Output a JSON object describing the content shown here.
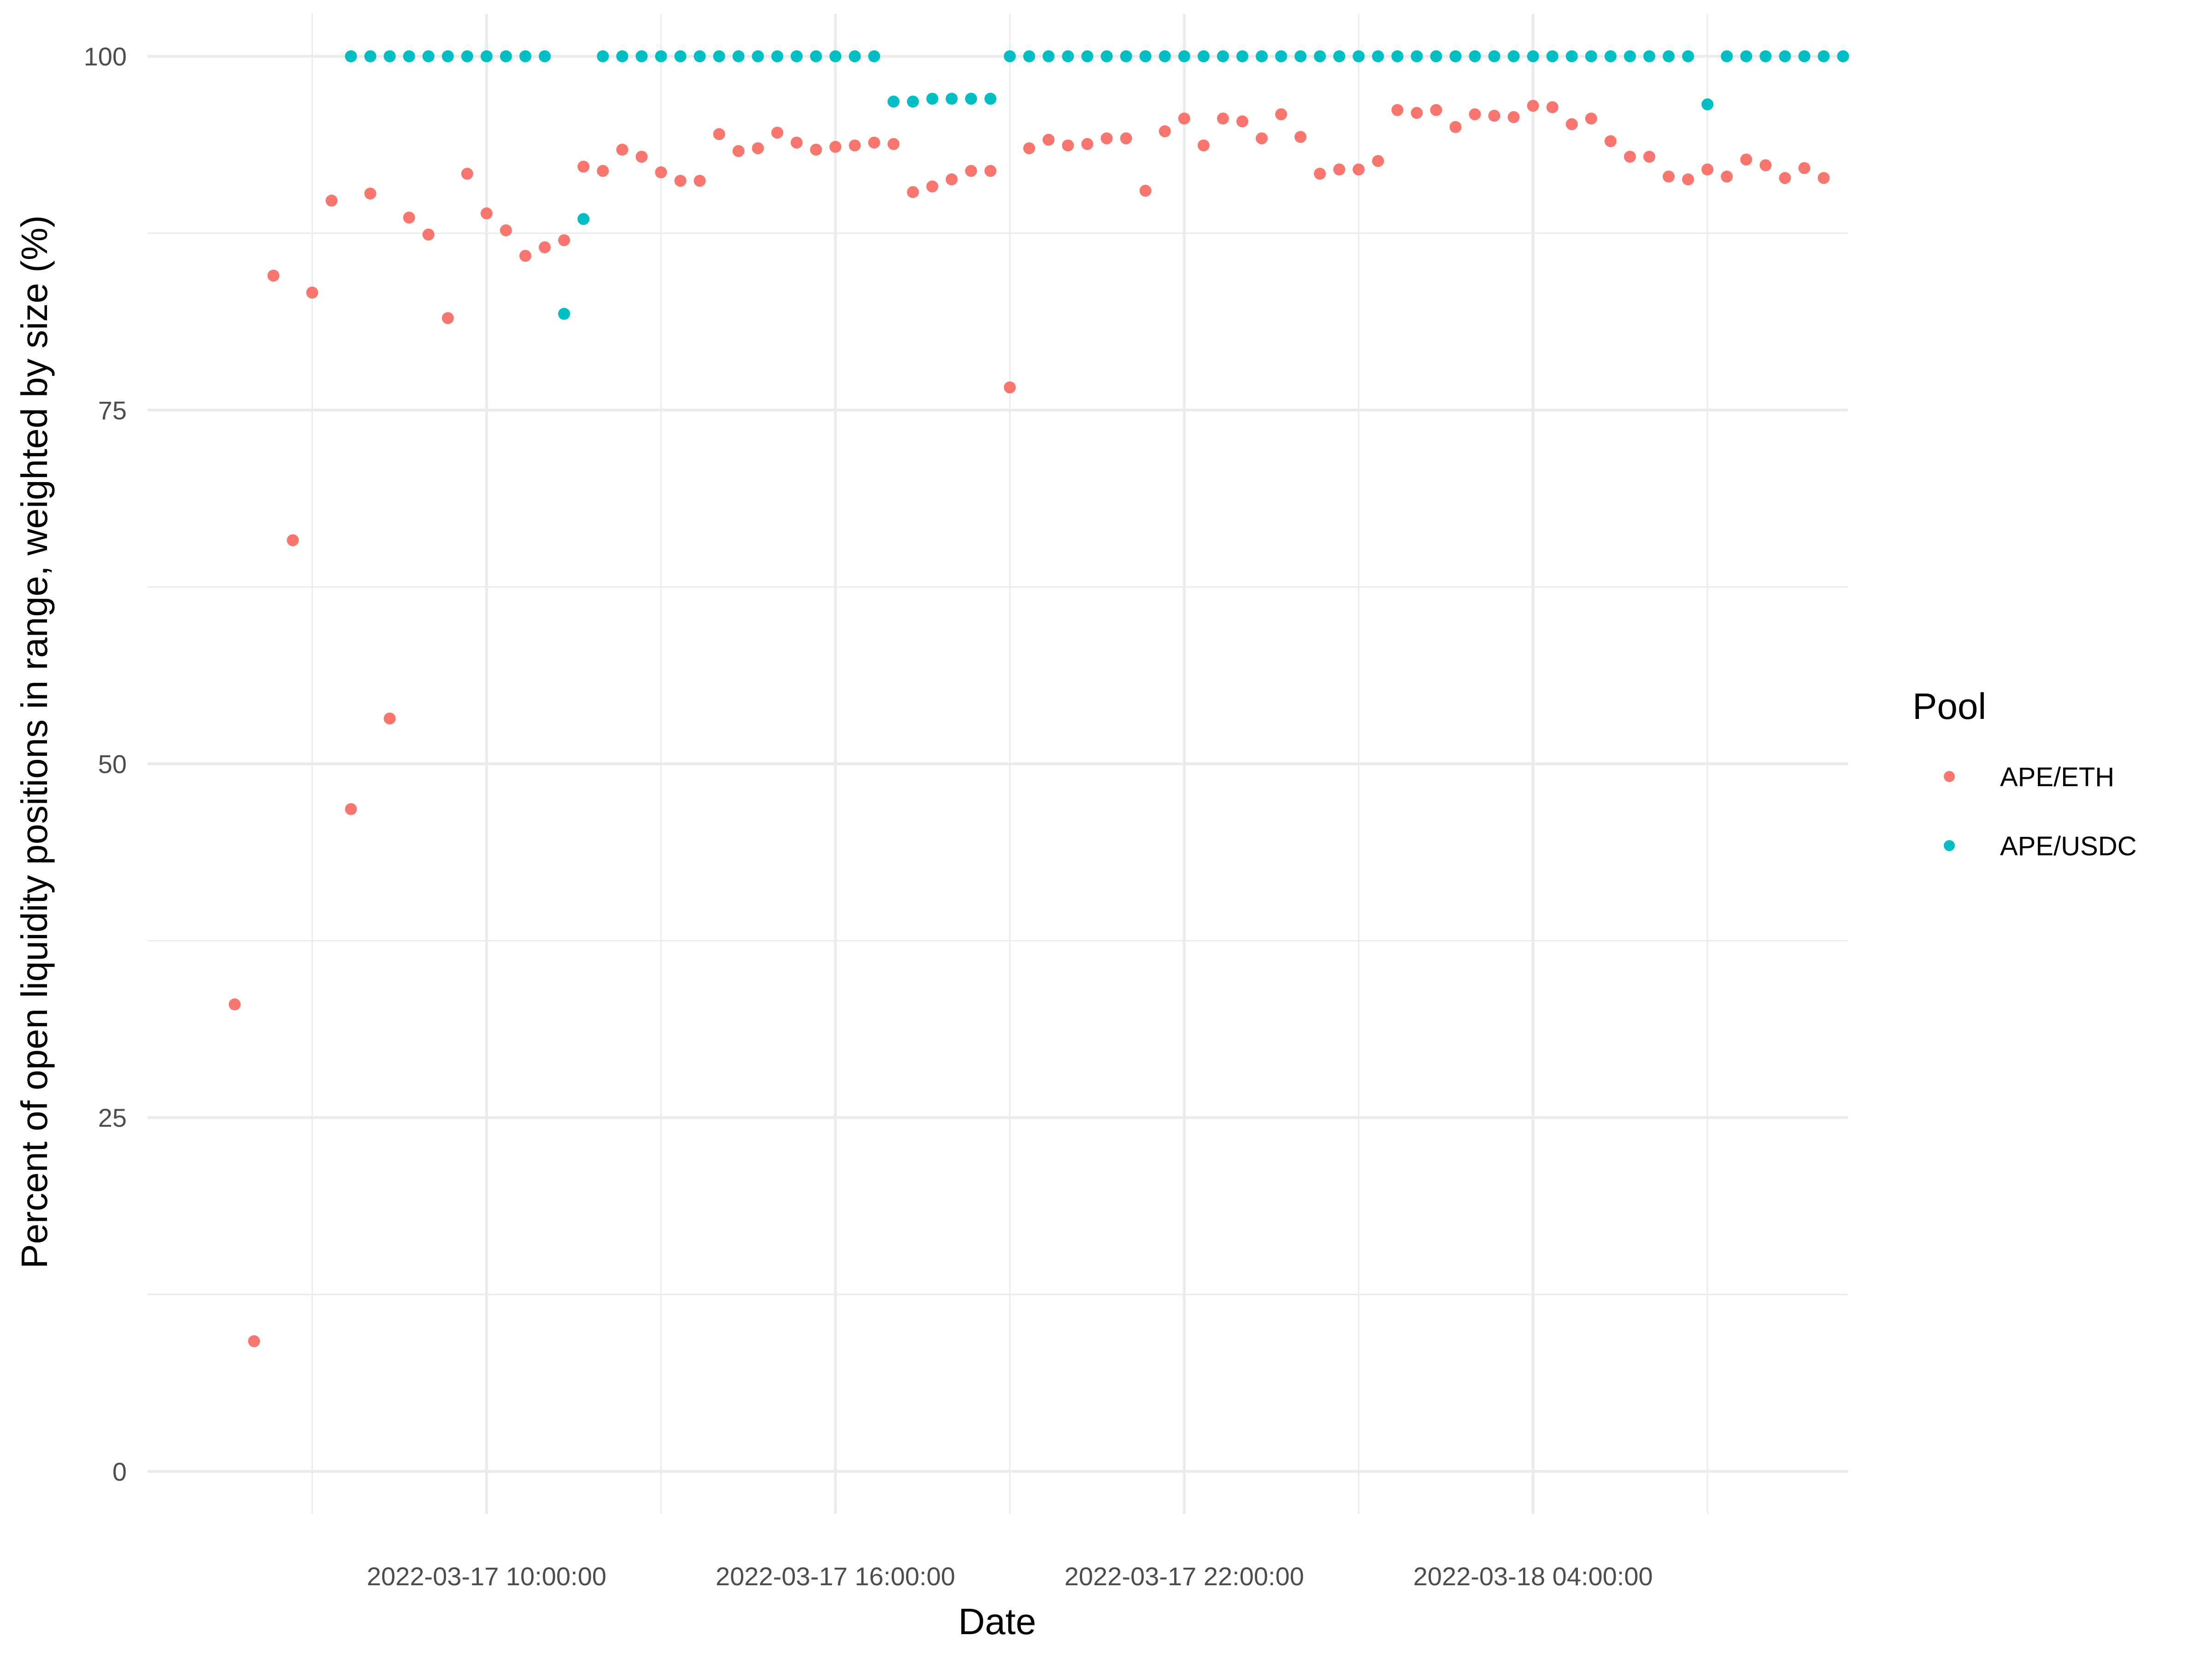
{
  "chart_data": {
    "type": "scatter",
    "title": "",
    "xlabel": "Date",
    "ylabel": "Percent of open liquidity positions in range, weighted by size (%)",
    "x_ticks": [
      "2022-03-17 10:00:00",
      "2022-03-17 16:00:00",
      "2022-03-17 22:00:00",
      "2022-03-18 04:00:00"
    ],
    "y_ticks": [
      "0",
      "25",
      "50",
      "75",
      "100"
    ],
    "xlim": [
      "2022-03-17 04:10:00",
      "2022-03-18 09:25:00"
    ],
    "ylim": [
      -3,
      103
    ],
    "grid": true,
    "legend": {
      "title": "Pool",
      "position": "right"
    },
    "series": [
      {
        "name": "APE/ETH",
        "color": "#F8766D",
        "points": [
          [
            "2022-03-17 05:40:00",
            33.0
          ],
          [
            "2022-03-17 06:00:00",
            9.2
          ],
          [
            "2022-03-17 06:20:00",
            84.5
          ],
          [
            "2022-03-17 06:40:00",
            65.8
          ],
          [
            "2022-03-17 07:00:00",
            83.3
          ],
          [
            "2022-03-17 07:20:00",
            89.8
          ],
          [
            "2022-03-17 07:40:00",
            46.8
          ],
          [
            "2022-03-17 08:00:00",
            90.3
          ],
          [
            "2022-03-17 08:20:00",
            53.2
          ],
          [
            "2022-03-17 08:40:00",
            88.6
          ],
          [
            "2022-03-17 09:00:00",
            87.4
          ],
          [
            "2022-03-17 09:20:00",
            81.5
          ],
          [
            "2022-03-17 09:40:00",
            91.7
          ],
          [
            "2022-03-17 10:00:00",
            88.9
          ],
          [
            "2022-03-17 10:20:00",
            87.7
          ],
          [
            "2022-03-17 10:40:00",
            85.9
          ],
          [
            "2022-03-17 11:00:00",
            86.5
          ],
          [
            "2022-03-17 11:20:00",
            87.0
          ],
          [
            "2022-03-17 11:40:00",
            92.2
          ],
          [
            "2022-03-17 12:00:00",
            91.9
          ],
          [
            "2022-03-17 12:20:00",
            93.4
          ],
          [
            "2022-03-17 12:40:00",
            92.9
          ],
          [
            "2022-03-17 13:00:00",
            91.8
          ],
          [
            "2022-03-17 13:20:00",
            91.2
          ],
          [
            "2022-03-17 13:40:00",
            91.2
          ],
          [
            "2022-03-17 14:00:00",
            94.5
          ],
          [
            "2022-03-17 14:20:00",
            93.3
          ],
          [
            "2022-03-17 14:40:00",
            93.5
          ],
          [
            "2022-03-17 15:00:00",
            94.6
          ],
          [
            "2022-03-17 15:20:00",
            93.9
          ],
          [
            "2022-03-17 15:40:00",
            93.4
          ],
          [
            "2022-03-17 16:00:00",
            93.6
          ],
          [
            "2022-03-17 16:20:00",
            93.7
          ],
          [
            "2022-03-17 16:40:00",
            93.9
          ],
          [
            "2022-03-17 17:00:00",
            93.8
          ],
          [
            "2022-03-17 17:20:00",
            90.4
          ],
          [
            "2022-03-17 17:40:00",
            90.8
          ],
          [
            "2022-03-17 18:00:00",
            91.3
          ],
          [
            "2022-03-17 18:20:00",
            91.9
          ],
          [
            "2022-03-17 18:40:00",
            91.9
          ],
          [
            "2022-03-17 19:00:00",
            76.6
          ],
          [
            "2022-03-17 19:20:00",
            93.5
          ],
          [
            "2022-03-17 19:40:00",
            94.1
          ],
          [
            "2022-03-17 20:00:00",
            93.7
          ],
          [
            "2022-03-17 20:20:00",
            93.8
          ],
          [
            "2022-03-17 20:40:00",
            94.2
          ],
          [
            "2022-03-17 21:00:00",
            94.2
          ],
          [
            "2022-03-17 21:20:00",
            90.5
          ],
          [
            "2022-03-17 21:40:00",
            94.7
          ],
          [
            "2022-03-17 22:00:00",
            95.6
          ],
          [
            "2022-03-17 22:20:00",
            93.7
          ],
          [
            "2022-03-17 22:40:00",
            95.6
          ],
          [
            "2022-03-17 23:00:00",
            95.4
          ],
          [
            "2022-03-17 23:20:00",
            94.2
          ],
          [
            "2022-03-17 23:40:00",
            95.9
          ],
          [
            "2022-03-18 00:00:00",
            94.3
          ],
          [
            "2022-03-18 00:20:00",
            91.7
          ],
          [
            "2022-03-18 00:40:00",
            92.0
          ],
          [
            "2022-03-18 01:00:00",
            92.0
          ],
          [
            "2022-03-18 01:20:00",
            92.6
          ],
          [
            "2022-03-18 01:40:00",
            96.2
          ],
          [
            "2022-03-18 02:00:00",
            96.0
          ],
          [
            "2022-03-18 02:20:00",
            96.2
          ],
          [
            "2022-03-18 02:40:00",
            95.0
          ],
          [
            "2022-03-18 03:00:00",
            95.9
          ],
          [
            "2022-03-18 03:20:00",
            95.8
          ],
          [
            "2022-03-18 03:40:00",
            95.7
          ],
          [
            "2022-03-18 04:00:00",
            96.5
          ],
          [
            "2022-03-18 04:20:00",
            96.4
          ],
          [
            "2022-03-18 04:40:00",
            95.2
          ],
          [
            "2022-03-18 05:00:00",
            95.6
          ],
          [
            "2022-03-18 05:20:00",
            94.0
          ],
          [
            "2022-03-18 05:40:00",
            92.9
          ],
          [
            "2022-03-18 06:00:00",
            92.9
          ],
          [
            "2022-03-18 06:20:00",
            91.5
          ],
          [
            "2022-03-18 06:40:00",
            91.3
          ],
          [
            "2022-03-18 07:00:00",
            92.0
          ],
          [
            "2022-03-18 07:20:00",
            91.5
          ],
          [
            "2022-03-18 07:40:00",
            92.7
          ],
          [
            "2022-03-18 08:00:00",
            92.3
          ],
          [
            "2022-03-18 08:20:00",
            91.4
          ],
          [
            "2022-03-18 08:40:00",
            92.1
          ],
          [
            "2022-03-18 09:00:00",
            91.4
          ]
        ]
      },
      {
        "name": "APE/USDC",
        "color": "#00BFC4",
        "points": [
          [
            "2022-03-17 07:40:00",
            100.0
          ],
          [
            "2022-03-17 08:00:00",
            100.0
          ],
          [
            "2022-03-17 08:20:00",
            100.0
          ],
          [
            "2022-03-17 08:40:00",
            100.0
          ],
          [
            "2022-03-17 09:00:00",
            100.0
          ],
          [
            "2022-03-17 09:20:00",
            100.0
          ],
          [
            "2022-03-17 09:40:00",
            100.0
          ],
          [
            "2022-03-17 10:00:00",
            100.0
          ],
          [
            "2022-03-17 10:20:00",
            100.0
          ],
          [
            "2022-03-17 10:40:00",
            100.0
          ],
          [
            "2022-03-17 11:00:00",
            100.0
          ],
          [
            "2022-03-17 11:20:00",
            81.8
          ],
          [
            "2022-03-17 11:40:00",
            88.5
          ],
          [
            "2022-03-17 12:00:00",
            100.0
          ],
          [
            "2022-03-17 12:20:00",
            100.0
          ],
          [
            "2022-03-17 12:40:00",
            100.0
          ],
          [
            "2022-03-17 13:00:00",
            100.0
          ],
          [
            "2022-03-17 13:20:00",
            100.0
          ],
          [
            "2022-03-17 13:40:00",
            100.0
          ],
          [
            "2022-03-17 14:00:00",
            100.0
          ],
          [
            "2022-03-17 14:20:00",
            100.0
          ],
          [
            "2022-03-17 14:40:00",
            100.0
          ],
          [
            "2022-03-17 15:00:00",
            100.0
          ],
          [
            "2022-03-17 15:20:00",
            100.0
          ],
          [
            "2022-03-17 15:40:00",
            100.0
          ],
          [
            "2022-03-17 16:00:00",
            100.0
          ],
          [
            "2022-03-17 16:20:00",
            100.0
          ],
          [
            "2022-03-17 16:40:00",
            100.0
          ],
          [
            "2022-03-17 17:00:00",
            96.8
          ],
          [
            "2022-03-17 17:20:00",
            96.8
          ],
          [
            "2022-03-17 17:40:00",
            97.0
          ],
          [
            "2022-03-17 18:00:00",
            97.0
          ],
          [
            "2022-03-17 18:20:00",
            97.0
          ],
          [
            "2022-03-17 18:40:00",
            97.0
          ],
          [
            "2022-03-17 19:00:00",
            100.0
          ],
          [
            "2022-03-17 19:20:00",
            100.0
          ],
          [
            "2022-03-17 19:40:00",
            100.0
          ],
          [
            "2022-03-17 20:00:00",
            100.0
          ],
          [
            "2022-03-17 20:20:00",
            100.0
          ],
          [
            "2022-03-17 20:40:00",
            100.0
          ],
          [
            "2022-03-17 21:00:00",
            100.0
          ],
          [
            "2022-03-17 21:20:00",
            100.0
          ],
          [
            "2022-03-17 21:40:00",
            100.0
          ],
          [
            "2022-03-17 22:00:00",
            100.0
          ],
          [
            "2022-03-17 22:20:00",
            100.0
          ],
          [
            "2022-03-17 22:40:00",
            100.0
          ],
          [
            "2022-03-17 23:00:00",
            100.0
          ],
          [
            "2022-03-17 23:20:00",
            100.0
          ],
          [
            "2022-03-17 23:40:00",
            100.0
          ],
          [
            "2022-03-18 00:00:00",
            100.0
          ],
          [
            "2022-03-18 00:20:00",
            100.0
          ],
          [
            "2022-03-18 00:40:00",
            100.0
          ],
          [
            "2022-03-18 01:00:00",
            100.0
          ],
          [
            "2022-03-18 01:20:00",
            100.0
          ],
          [
            "2022-03-18 01:40:00",
            100.0
          ],
          [
            "2022-03-18 02:00:00",
            100.0
          ],
          [
            "2022-03-18 02:20:00",
            100.0
          ],
          [
            "2022-03-18 02:40:00",
            100.0
          ],
          [
            "2022-03-18 03:00:00",
            100.0
          ],
          [
            "2022-03-18 03:20:00",
            100.0
          ],
          [
            "2022-03-18 03:40:00",
            100.0
          ],
          [
            "2022-03-18 04:00:00",
            100.0
          ],
          [
            "2022-03-18 04:20:00",
            100.0
          ],
          [
            "2022-03-18 04:40:00",
            100.0
          ],
          [
            "2022-03-18 05:00:00",
            100.0
          ],
          [
            "2022-03-18 05:20:00",
            100.0
          ],
          [
            "2022-03-18 05:40:00",
            100.0
          ],
          [
            "2022-03-18 06:00:00",
            100.0
          ],
          [
            "2022-03-18 06:20:00",
            100.0
          ],
          [
            "2022-03-18 06:40:00",
            100.0
          ],
          [
            "2022-03-18 07:00:00",
            96.6
          ],
          [
            "2022-03-18 07:20:00",
            100.0
          ],
          [
            "2022-03-18 07:40:00",
            100.0
          ],
          [
            "2022-03-18 08:00:00",
            100.0
          ],
          [
            "2022-03-18 08:20:00",
            100.0
          ],
          [
            "2022-03-18 08:40:00",
            100.0
          ],
          [
            "2022-03-18 09:00:00",
            100.0
          ],
          [
            "2022-03-18 09:20:00",
            100.0
          ]
        ]
      }
    ]
  }
}
